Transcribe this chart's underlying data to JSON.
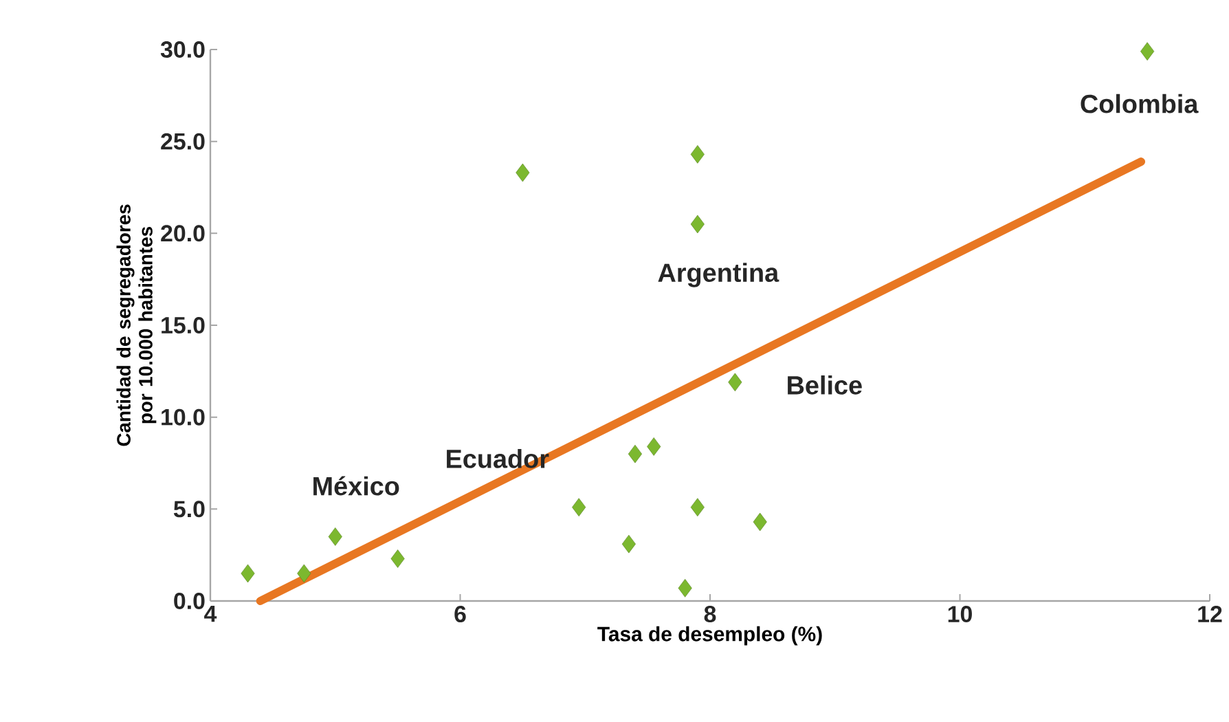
{
  "chart_data": {
    "type": "scatter",
    "xlabel": "Tasa de desempleo (%)",
    "ylabel": "Cantidad de segregadores por 10.000 habitantes",
    "xlim": [
      4,
      12
    ],
    "xticks": [
      4,
      6,
      8,
      10,
      12
    ],
    "ylim": [
      0,
      30
    ],
    "yticks": [
      {
        "value": 0,
        "label": "0.0"
      },
      {
        "value": 5,
        "label": "5.0"
      },
      {
        "value": 10,
        "label": "10.0"
      },
      {
        "value": 15,
        "label": "15.0"
      },
      {
        "value": 20,
        "label": "20.0"
      },
      {
        "value": 25,
        "label": "25.0"
      },
      {
        "value": 30,
        "label": "30.0"
      }
    ],
    "grid": false,
    "marker": "diamond",
    "series": [
      {
        "color": "#7cb82f",
        "x": [
          4.3,
          4.75,
          5.0,
          5.5,
          6.5,
          6.95,
          7.35,
          7.4,
          7.55,
          7.8,
          7.9,
          7.9,
          7.9,
          8.2,
          8.4,
          11.5
        ],
        "values": [
          1.5,
          1.5,
          3.5,
          2.3,
          23.3,
          5.1,
          3.1,
          8.0,
          8.4,
          0.7,
          24.3,
          20.5,
          5.1,
          11.9,
          4.3,
          29.9
        ]
      },
      {
        "type": "line",
        "color": "#e87722",
        "marker": "none",
        "x": [
          4.4,
          11.45
        ],
        "values": [
          0,
          23.9
        ]
      }
    ],
    "annotations": [
      {
        "text": "Colombia",
        "x": 11.5,
        "y": 29.9
      },
      {
        "text": "Argentina",
        "x": 7.9,
        "y": 20.5
      },
      {
        "text": "Belice",
        "x": 8.2,
        "y": 11.9
      },
      {
        "text": "Ecuador",
        "x": 6.45,
        "y": 7.0
      },
      {
        "text": "México",
        "x": 5.0,
        "y": 3.5
      }
    ]
  }
}
